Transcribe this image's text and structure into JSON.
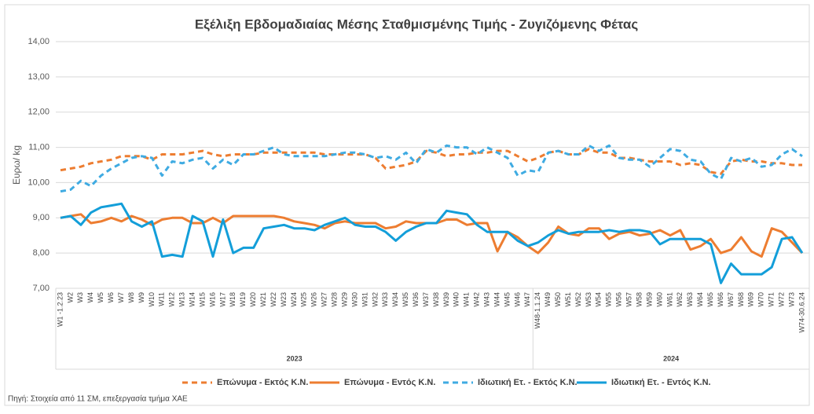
{
  "chart_data": {
    "type": "line",
    "title": "Εξέλιξη Εβδομαδιαίας Μέσης Σταθμισμένης Τιμής - Ζυγιζόμενης Φέτας",
    "y_label": "Ευρω/ kg",
    "source": "Πηγή: Στοιχεία από 11 ΣΜ, επεξεργασία τμήμα ΧΑΕ",
    "categories": [
      "W1 -1.2.23",
      "W2",
      "W3",
      "W4",
      "W5",
      "W6",
      "W7",
      "W8",
      "W9",
      "W10",
      "W11",
      "W12",
      "W13",
      "W14",
      "W15",
      "W16",
      "W17",
      "W18",
      "W19",
      "W20",
      "W21",
      "W22",
      "W23",
      "W24",
      "W25",
      "W26",
      "W27",
      "W28",
      "W29",
      "W30",
      "W31",
      "W32",
      "W33",
      "W34",
      "W35",
      "W36",
      "W37",
      "W38",
      "W39",
      "W40",
      "W41",
      "W42",
      "W43",
      "W44",
      "W45",
      "W46",
      "W47",
      "W48-1.1.24",
      "W49",
      "W50",
      "W51",
      "W52",
      "W53",
      "W54",
      "W55",
      "W56",
      "W57",
      "W58",
      "W59",
      "W60",
      "W61",
      "W62",
      "W63",
      "W64",
      "W65",
      "W66",
      "W67",
      "W68",
      "W69",
      "W70",
      "W71",
      "W72",
      "W73",
      "W74-30.6.24"
    ],
    "x_groups": [
      {
        "label": "2023",
        "count": 47
      },
      {
        "label": "2024",
        "count": 27
      }
    ],
    "series": [
      {
        "name": "Επώνυμα - Εκτός Κ.Ν.",
        "color": "#ed7d31",
        "dashed": true,
        "values": [
          10.35,
          10.4,
          10.45,
          10.55,
          10.6,
          10.65,
          10.75,
          10.75,
          10.75,
          10.65,
          10.8,
          10.8,
          10.8,
          10.85,
          10.9,
          10.8,
          10.75,
          10.8,
          10.8,
          10.8,
          10.85,
          10.85,
          10.85,
          10.85,
          10.85,
          10.85,
          10.8,
          10.8,
          10.8,
          10.8,
          10.8,
          10.7,
          10.4,
          10.45,
          10.5,
          10.6,
          10.9,
          10.85,
          10.75,
          10.8,
          10.8,
          10.85,
          10.85,
          10.9,
          10.9,
          10.75,
          10.6,
          10.7,
          10.85,
          10.9,
          10.8,
          10.8,
          10.95,
          10.85,
          10.85,
          10.7,
          10.7,
          10.65,
          10.6,
          10.6,
          10.6,
          10.5,
          10.55,
          10.5,
          10.3,
          10.25,
          10.6,
          10.65,
          10.6,
          10.6,
          10.55,
          10.55,
          10.5,
          10.5
        ]
      },
      {
        "name": "Επώνυμα - Εντός Κ.Ν.",
        "color": "#ed7d31",
        "dashed": false,
        "values": [
          9.0,
          9.05,
          9.1,
          8.85,
          8.9,
          9.0,
          8.9,
          9.05,
          8.95,
          8.8,
          8.95,
          9.0,
          9.0,
          8.85,
          8.85,
          9.0,
          8.85,
          9.05,
          9.05,
          9.05,
          9.05,
          9.05,
          9.0,
          8.9,
          8.85,
          8.8,
          8.7,
          8.85,
          8.9,
          8.85,
          8.85,
          8.85,
          8.7,
          8.75,
          8.9,
          8.85,
          8.85,
          8.85,
          8.95,
          8.95,
          8.8,
          8.85,
          8.85,
          8.05,
          8.6,
          8.45,
          8.2,
          8.0,
          8.3,
          8.75,
          8.55,
          8.5,
          8.7,
          8.7,
          8.4,
          8.55,
          8.6,
          8.5,
          8.55,
          8.65,
          8.5,
          8.65,
          8.1,
          8.2,
          8.4,
          8.0,
          8.1,
          8.45,
          8.05,
          7.9,
          8.7,
          8.6,
          8.3,
          8.0
        ]
      },
      {
        "name": "Ιδιωτική Ετ. - Εκτός Κ.Ν.",
        "color": "#3fabe2",
        "dashed": true,
        "values": [
          9.75,
          9.8,
          10.05,
          9.9,
          10.2,
          10.4,
          10.55,
          10.7,
          10.75,
          10.7,
          10.2,
          10.6,
          10.55,
          10.65,
          10.7,
          10.4,
          10.65,
          10.5,
          10.8,
          10.8,
          10.9,
          11.0,
          10.8,
          10.75,
          10.75,
          10.75,
          10.75,
          10.8,
          10.85,
          10.85,
          10.8,
          10.7,
          10.75,
          10.65,
          10.85,
          10.55,
          10.95,
          10.85,
          11.05,
          11.0,
          11.0,
          10.8,
          11.0,
          10.85,
          10.7,
          10.2,
          10.35,
          10.3,
          10.85,
          10.9,
          10.8,
          10.8,
          11.05,
          10.9,
          11.05,
          10.7,
          10.65,
          10.65,
          10.45,
          10.7,
          10.95,
          10.9,
          10.65,
          10.6,
          10.25,
          10.1,
          10.7,
          10.6,
          10.7,
          10.45,
          10.5,
          10.8,
          10.95,
          10.75
        ]
      },
      {
        "name": "Ιδιωτική Ετ. - Εντός Κ.Ν.",
        "color": "#139ed9",
        "dashed": false,
        "values": [
          9.0,
          9.05,
          8.8,
          9.15,
          9.3,
          9.35,
          9.4,
          8.9,
          8.75,
          8.9,
          7.9,
          7.95,
          7.9,
          9.05,
          8.9,
          7.9,
          8.95,
          8.0,
          8.15,
          8.15,
          8.7,
          8.75,
          8.8,
          8.7,
          8.7,
          8.65,
          8.8,
          8.9,
          9.0,
          8.8,
          8.75,
          8.75,
          8.6,
          8.35,
          8.6,
          8.75,
          8.85,
          8.85,
          9.2,
          9.15,
          9.1,
          8.8,
          8.6,
          8.6,
          8.6,
          8.35,
          8.2,
          8.3,
          8.5,
          8.65,
          8.55,
          8.6,
          8.6,
          8.6,
          8.65,
          8.6,
          8.65,
          8.65,
          8.6,
          8.25,
          8.4,
          8.4,
          8.4,
          8.4,
          8.25,
          7.15,
          7.7,
          7.4,
          7.4,
          7.4,
          7.6,
          8.4,
          8.45,
          8.0
        ]
      }
    ],
    "ylim": [
      7,
      14
    ],
    "yticks": [
      {
        "value": 7,
        "label": "7,00"
      },
      {
        "value": 8,
        "label": "8,00"
      },
      {
        "value": 9,
        "label": "9,00"
      },
      {
        "value": 10,
        "label": "10,00"
      },
      {
        "value": 11,
        "label": "11,00"
      },
      {
        "value": 12,
        "label": "12,00"
      },
      {
        "value": 13,
        "label": "13,00"
      },
      {
        "value": 14,
        "label": "14,00"
      }
    ],
    "grid": true,
    "legend": "bottom"
  }
}
